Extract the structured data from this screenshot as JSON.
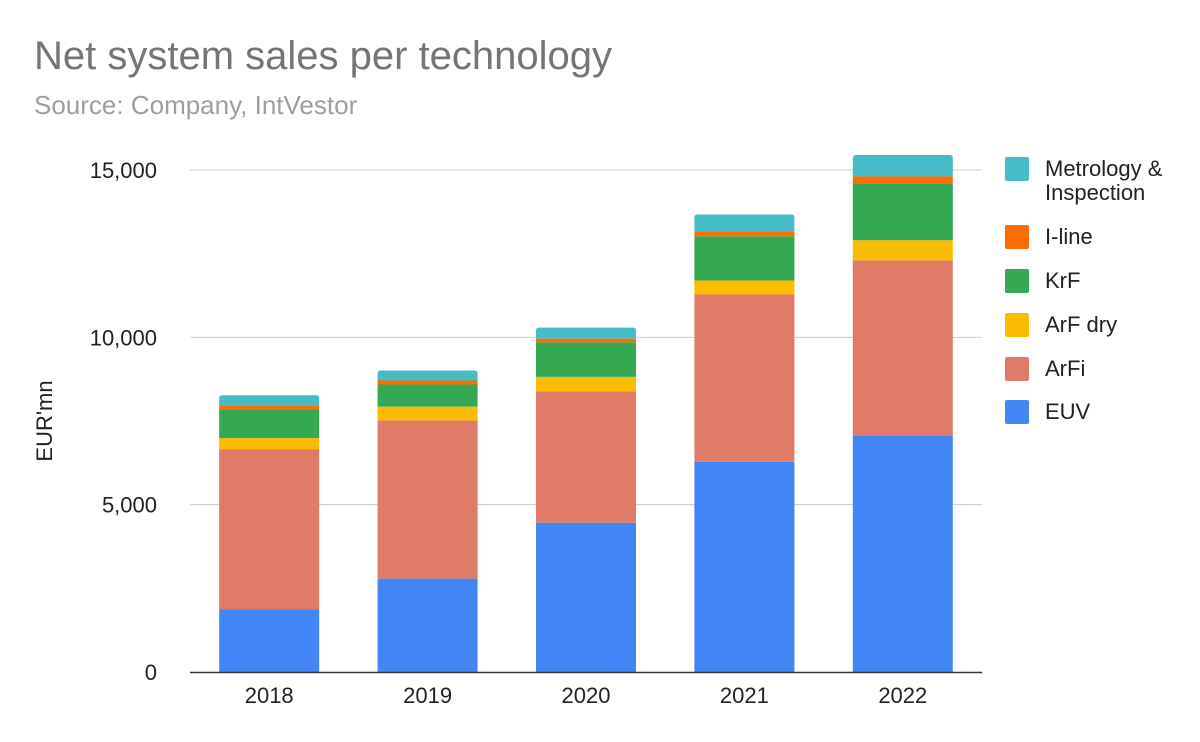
{
  "chart_data": {
    "type": "bar",
    "stacked": true,
    "title": "Net system sales per technology",
    "subtitle": "Source: Company, IntVestor",
    "xlabel": "",
    "ylabel": "EUR'mn",
    "ylim": [
      0,
      15500
    ],
    "yticks": [
      0,
      5000,
      10000,
      15000
    ],
    "ytick_labels": [
      "0",
      "5,000",
      "10,000",
      "15,000"
    ],
    "grid": true,
    "legend_position": "right",
    "categories": [
      "2018",
      "2019",
      "2020",
      "2021",
      "2022"
    ],
    "series": [
      {
        "name": "EUV",
        "color": "#4285f4",
        "values": [
          1880,
          2790,
          4460,
          6280,
          7050
        ]
      },
      {
        "name": "ArFi",
        "color": "#e07b67",
        "values": [
          4780,
          4730,
          3930,
          5000,
          5250
        ]
      },
      {
        "name": "ArF dry",
        "color": "#fbbc04",
        "values": [
          330,
          410,
          430,
          420,
          600
        ]
      },
      {
        "name": "KrF",
        "color": "#34a853",
        "values": [
          840,
          660,
          1030,
          1320,
          1680
        ]
      },
      {
        "name": "I-line",
        "color": "#ff6d01",
        "values": [
          120,
          120,
          110,
          140,
          230
        ]
      },
      {
        "name": "Metrology & Inspection",
        "color": "#46bdc6",
        "values": [
          320,
          300,
          330,
          510,
          640
        ]
      }
    ]
  }
}
